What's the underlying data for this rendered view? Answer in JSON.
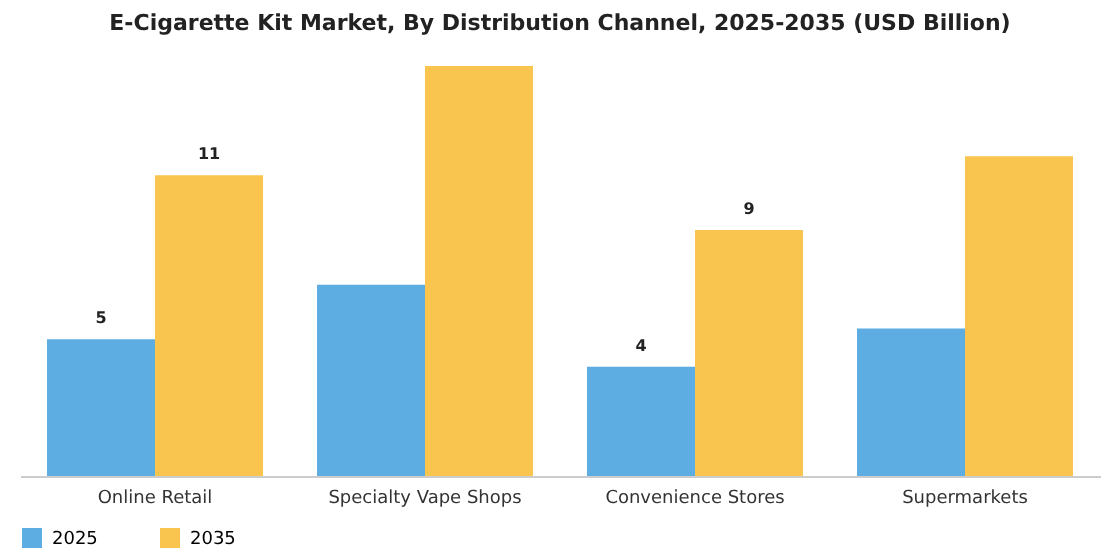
{
  "chart_data": {
    "type": "bar",
    "title": "E-Cigarette Kit Market, By Distribution Channel, 2025-2035 (USD Billion)",
    "categories": [
      "Online Retail",
      "Specialty Vape Shops",
      "Convenience Stores",
      "Supermarkets"
    ],
    "series": [
      {
        "name": "2025",
        "color": "#5dade2",
        "values": [
          5,
          7,
          4,
          5.4
        ],
        "value_labels": [
          "5",
          null,
          "4",
          null
        ]
      },
      {
        "name": "2035",
        "color": "#f9c54e",
        "values": [
          11,
          15,
          9,
          11.7
        ],
        "value_labels": [
          "11",
          null,
          "9",
          null
        ]
      }
    ],
    "legend": "bottom",
    "grid": false
  }
}
